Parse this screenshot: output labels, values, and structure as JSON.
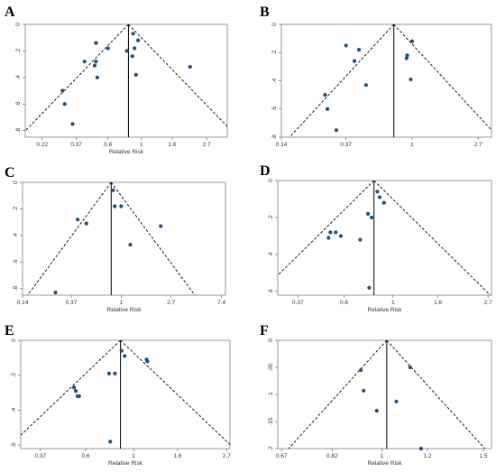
{
  "chart_data": [
    {
      "type": "scatter",
      "panel_label": "A",
      "xlabel": "Relative Risk",
      "x_scale": "log",
      "x_tick_labels": [
        "0.22",
        "0.37",
        "0.6",
        "1",
        "1.6",
        "2.7"
      ],
      "y_tick_labels": [
        "0",
        ".2",
        ".4",
        ".6",
        ".8"
      ],
      "xlim": [
        0.17,
        3.7
      ],
      "ylim": [
        0,
        0.85
      ],
      "y_reversed": true,
      "pooled_rr": 0.82,
      "pseudo_ci_lines": true,
      "points": [
        {
          "x": 0.5,
          "y": 0.14
        },
        {
          "x": 0.6,
          "y": 0.18
        },
        {
          "x": 0.42,
          "y": 0.28
        },
        {
          "x": 0.5,
          "y": 0.28
        },
        {
          "x": 0.49,
          "y": 0.31
        },
        {
          "x": 0.51,
          "y": 0.4
        },
        {
          "x": 0.3,
          "y": 0.5
        },
        {
          "x": 0.31,
          "y": 0.6
        },
        {
          "x": 0.35,
          "y": 0.75
        },
        {
          "x": 0.88,
          "y": 0.07
        },
        {
          "x": 0.95,
          "y": 0.12
        },
        {
          "x": 0.9,
          "y": 0.18
        },
        {
          "x": 0.8,
          "y": 0.2
        },
        {
          "x": 0.87,
          "y": 0.24
        },
        {
          "x": 0.92,
          "y": 0.38
        },
        {
          "x": 2.1,
          "y": 0.32
        }
      ]
    },
    {
      "type": "scatter",
      "panel_label": "B",
      "xlabel": "",
      "x_scale": "log",
      "x_tick_labels": [
        "0.14",
        "0.37",
        "1",
        "2.7"
      ],
      "y_tick_labels": [
        "0",
        ".2",
        ".4",
        ".6",
        ".8"
      ],
      "xlim": [
        0.14,
        3.3
      ],
      "ylim": [
        0,
        0.8
      ],
      "y_reversed": true,
      "pooled_rr": 0.76,
      "pseudo_ci_lines": true,
      "points": [
        {
          "x": 0.37,
          "y": 0.15
        },
        {
          "x": 0.45,
          "y": 0.18
        },
        {
          "x": 0.42,
          "y": 0.26
        },
        {
          "x": 0.5,
          "y": 0.43
        },
        {
          "x": 0.27,
          "y": 0.5
        },
        {
          "x": 0.28,
          "y": 0.6
        },
        {
          "x": 0.32,
          "y": 0.75
        },
        {
          "x": 1.0,
          "y": 0.12
        },
        {
          "x": 0.93,
          "y": 0.22
        },
        {
          "x": 0.92,
          "y": 0.24
        },
        {
          "x": 0.98,
          "y": 0.39
        }
      ]
    },
    {
      "type": "scatter",
      "panel_label": "C",
      "xlabel": "Relative Risk",
      "x_scale": "log",
      "x_tick_labels": [
        "0.14",
        "0.37",
        "1",
        "2.7",
        "7.4"
      ],
      "y_tick_labels": [
        "0",
        ".2",
        ".4",
        ".6",
        ".8"
      ],
      "xlim": [
        0.14,
        8.0
      ],
      "ylim": [
        0,
        0.85
      ],
      "y_reversed": true,
      "pooled_rr": 0.82,
      "pseudo_ci_lines": true,
      "points": [
        {
          "x": 0.85,
          "y": 0.06
        },
        {
          "x": 0.88,
          "y": 0.18
        },
        {
          "x": 1.0,
          "y": 0.18
        },
        {
          "x": 0.42,
          "y": 0.28
        },
        {
          "x": 0.5,
          "y": 0.31
        },
        {
          "x": 1.2,
          "y": 0.47
        },
        {
          "x": 0.27,
          "y": 0.83
        },
        {
          "x": 2.2,
          "y": 0.33
        }
      ]
    },
    {
      "type": "scatter",
      "panel_label": "D",
      "xlabel": "Relative Risk",
      "x_scale": "log",
      "x_tick_labels": [
        "0.37",
        "0.6",
        "1",
        "1.6",
        "2.7"
      ],
      "y_tick_labels": [
        "0",
        ".2",
        ".4",
        ".6"
      ],
      "xlim": [
        0.3,
        2.8
      ],
      "ylim": [
        0,
        0.62
      ],
      "y_reversed": true,
      "pooled_rr": 0.82,
      "pseudo_ci_lines": true,
      "points": [
        {
          "x": 0.85,
          "y": 0.06
        },
        {
          "x": 0.87,
          "y": 0.09
        },
        {
          "x": 0.91,
          "y": 0.12
        },
        {
          "x": 0.77,
          "y": 0.18
        },
        {
          "x": 0.8,
          "y": 0.2
        },
        {
          "x": 0.52,
          "y": 0.28
        },
        {
          "x": 0.55,
          "y": 0.28
        },
        {
          "x": 0.58,
          "y": 0.3
        },
        {
          "x": 0.51,
          "y": 0.31
        },
        {
          "x": 0.71,
          "y": 0.32
        },
        {
          "x": 0.78,
          "y": 0.58
        }
      ]
    },
    {
      "type": "scatter",
      "panel_label": "E",
      "xlabel": "Relative Risk",
      "x_scale": "log",
      "x_tick_labels": [
        "0.37",
        "0.6",
        "1",
        "1.6",
        "2.7"
      ],
      "y_tick_labels": [
        "0",
        ".2",
        ".4",
        ".6"
      ],
      "xlim": [
        0.3,
        2.8
      ],
      "ylim": [
        0,
        0.62
      ],
      "y_reversed": true,
      "pooled_rr": 0.87,
      "pseudo_ci_lines": true,
      "points": [
        {
          "x": 0.88,
          "y": 0.06
        },
        {
          "x": 0.91,
          "y": 0.09
        },
        {
          "x": 1.15,
          "y": 0.11
        },
        {
          "x": 1.16,
          "y": 0.12
        },
        {
          "x": 0.77,
          "y": 0.19
        },
        {
          "x": 0.82,
          "y": 0.19
        },
        {
          "x": 0.53,
          "y": 0.27
        },
        {
          "x": 0.54,
          "y": 0.29
        },
        {
          "x": 0.55,
          "y": 0.32
        },
        {
          "x": 0.56,
          "y": 0.32
        },
        {
          "x": 0.78,
          "y": 0.58
        }
      ]
    },
    {
      "type": "scatter",
      "panel_label": "F",
      "xlabel": "Relative Risk",
      "x_scale": "log",
      "x_tick_labels": [
        "0.67",
        "0.82",
        "1",
        "1.2",
        "1.5"
      ],
      "y_tick_labels": [
        "0",
        ".05",
        ".1",
        ".15",
        ".2"
      ],
      "xlim": [
        0.66,
        1.55
      ],
      "ylim": [
        0,
        0.2
      ],
      "y_reversed": true,
      "pooled_rr": 1.02,
      "pseudo_ci_lines": true,
      "points": [
        {
          "x": 0.92,
          "y": 0.055
        },
        {
          "x": 0.93,
          "y": 0.093
        },
        {
          "x": 1.12,
          "y": 0.05
        },
        {
          "x": 1.06,
          "y": 0.113
        },
        {
          "x": 0.98,
          "y": 0.13
        },
        {
          "x": 1.17,
          "y": 0.2
        }
      ]
    }
  ],
  "colors": {
    "point": "#1f4e79",
    "line": "#000000",
    "dashed": "#000000"
  }
}
